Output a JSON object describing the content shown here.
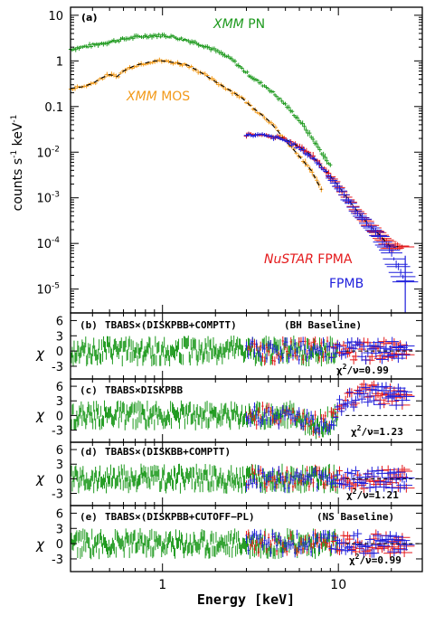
{
  "colors": {
    "pn": "#1f9a1f",
    "mos": "#f29a1a",
    "fpma": "#e41a1c",
    "fpmb": "#1f1fdc",
    "model": "#000000",
    "axis": "#000000"
  },
  "chart_data": {
    "type": "scatter",
    "x_scale": "log",
    "xlim": [
      0.3,
      30
    ],
    "xlabel": "Energy [keV]",
    "x_ticklabels": [
      {
        "value": 1,
        "label": "1"
      },
      {
        "value": 10,
        "label": "10"
      }
    ],
    "panels": [
      {
        "id": "a",
        "tag": "(a)",
        "ylabel_main": "counts s",
        "ylabel_exp1": "-1",
        "ylabel_mid": " keV",
        "ylabel_exp2": "-1",
        "y_scale": "log",
        "ylim": [
          3e-06,
          15
        ],
        "y_ticklabels": [
          {
            "value": 10,
            "label": "10"
          },
          {
            "value": 1,
            "label": "1"
          },
          {
            "value": 0.1,
            "label": "0.1"
          },
          {
            "value": 0.01,
            "label": "10",
            "exp": "-2"
          },
          {
            "value": 0.001,
            "label": "10",
            "exp": "-3"
          },
          {
            "value": 0.0001,
            "label": "10",
            "exp": "-4"
          },
          {
            "value": 1e-05,
            "label": "10",
            "exp": "-5"
          }
        ],
        "series": [
          {
            "key": "pn",
            "name_italic": "XMM",
            "name_rest": " PN",
            "x": [
              0.3,
              0.4,
              0.5,
              0.6,
              0.7,
              0.8,
              0.9,
              1.0,
              1.1,
              1.3,
              1.5,
              1.7,
              2.0,
              2.5,
              3.0,
              3.5,
              4.0,
              5.0,
              6.0,
              7.0,
              8.0,
              9.0
            ],
            "y": [
              1.8,
              2.2,
              2.6,
              3.0,
              3.3,
              3.5,
              3.6,
              3.6,
              3.5,
              3.0,
              2.6,
              2.2,
              1.7,
              1.05,
              0.55,
              0.35,
              0.25,
              0.11,
              0.05,
              0.022,
              0.01,
              0.005
            ]
          },
          {
            "key": "mos",
            "name_italic": "XMM",
            "name_rest": " MOS",
            "x": [
              0.3,
              0.35,
              0.4,
              0.45,
              0.5,
              0.55,
              0.6,
              0.65,
              0.7,
              0.8,
              0.9,
              1.0,
              1.1,
              1.2,
              1.4,
              1.6,
              1.8,
              2.0,
              2.4,
              2.8,
              3.2,
              3.6,
              4.0,
              4.5,
              5.0,
              5.5,
              6.0,
              7.0,
              8.0
            ],
            "y": [
              0.25,
              0.27,
              0.32,
              0.42,
              0.5,
              0.45,
              0.6,
              0.7,
              0.8,
              0.9,
              1.0,
              1.0,
              0.95,
              0.9,
              0.8,
              0.6,
              0.45,
              0.35,
              0.23,
              0.16,
              0.1,
              0.07,
              0.05,
              0.03,
              0.018,
              0.012,
              0.008,
              0.004,
              0.0015
            ]
          },
          {
            "key": "fpma",
            "name_italic": "NuSTAR",
            "name_rest": " FPMA",
            "x": [
              3.0,
              3.2,
              3.4,
              3.6,
              3.8,
              4.0,
              4.3,
              4.6,
              5.0,
              5.5,
              6.0,
              6.5,
              7.0,
              7.5,
              8.0,
              8.5,
              9.0,
              10.0,
              11.0,
              12.0,
              13.5,
              15.0,
              17.0,
              20.0,
              23.0
            ],
            "y": [
              0.024,
              0.025,
              0.024,
              0.025,
              0.024,
              0.023,
              0.022,
              0.021,
              0.019,
              0.016,
              0.013,
              0.0105,
              0.0085,
              0.0066,
              0.005,
              0.0039,
              0.003,
              0.0018,
              0.0011,
              0.0007,
              0.0004,
              0.00025,
              0.00016,
              8e-05,
              9e-05
            ]
          },
          {
            "key": "fpmb",
            "name_italic": "",
            "name_rest": "FPMB",
            "x": [
              3.0,
              3.2,
              3.4,
              3.6,
              3.8,
              4.0,
              4.3,
              4.6,
              5.0,
              5.5,
              6.0,
              6.5,
              7.0,
              7.5,
              8.0,
              8.5,
              9.0,
              10.0,
              11.0,
              12.0,
              13.5,
              15.0,
              17.0,
              20.0,
              24.0
            ],
            "y": [
              0.023,
              0.024,
              0.023,
              0.024,
              0.023,
              0.022,
              0.021,
              0.02,
              0.018,
              0.015,
              0.012,
              0.0098,
              0.008,
              0.0062,
              0.0047,
              0.0037,
              0.0028,
              0.0017,
              0.001,
              0.00065,
              0.00038,
              0.00024,
              0.00015,
              6e-05,
              1.5e-05
            ]
          }
        ]
      },
      {
        "id": "b",
        "tag": "(b)",
        "model_label": "TBABS×(DISKPBB+COMPTT)",
        "baseline": "(BH Baseline)",
        "stat_prefix": "χ",
        "stat_sup": "2",
        "stat_suffix": "/ν=0.99",
        "ylabel": "χ",
        "ylim": [
          -5.5,
          7.5
        ],
        "y_ticklabels": [
          "6",
          "3",
          "0",
          "-3"
        ],
        "trend": [
          [
            0.3,
            0
          ],
          [
            30,
            0
          ]
        ]
      },
      {
        "id": "c",
        "tag": "(c)",
        "model_label": "TBABS×DISKPBB",
        "baseline": "",
        "stat_prefix": "χ",
        "stat_sup": "2",
        "stat_suffix": "/ν=1.23",
        "ylabel": "χ",
        "ylim": [
          -5.5,
          7.5
        ],
        "y_ticklabels": [
          "6",
          "3",
          "0",
          "-3"
        ],
        "trend": [
          [
            0.3,
            0
          ],
          [
            5.5,
            0
          ],
          [
            7.5,
            -2.0
          ],
          [
            9.0,
            -1.0
          ],
          [
            11.0,
            2.8
          ],
          [
            14.0,
            4.5
          ],
          [
            17.0,
            4.2
          ],
          [
            21.0,
            3.8
          ],
          [
            25.0,
            3.2
          ]
        ]
      },
      {
        "id": "d",
        "tag": "(d)",
        "model_label": "TBABS×(DISKBB+COMPTT)",
        "baseline": "",
        "stat_prefix": "χ",
        "stat_sup": "2",
        "stat_suffix": "/ν=1.21",
        "ylabel": "χ",
        "ylim": [
          -5.5,
          7.5
        ],
        "y_ticklabels": [
          "6",
          "3",
          "0",
          "-3"
        ],
        "trend": [
          [
            0.3,
            0
          ],
          [
            30,
            0
          ]
        ]
      },
      {
        "id": "e",
        "tag": "(e)",
        "model_label": "TBABS×(DISKPBB+CUTOFF−PL)",
        "baseline": "(NS Baseline)",
        "stat_prefix": "χ",
        "stat_sup": "2",
        "stat_suffix": "/ν=0.99",
        "ylabel": "χ",
        "ylim": [
          -5.5,
          7.5
        ],
        "y_ticklabels": [
          "6",
          "3",
          "0",
          "-3"
        ],
        "trend": [
          [
            0.3,
            0
          ],
          [
            30,
            0
          ]
        ]
      }
    ]
  }
}
